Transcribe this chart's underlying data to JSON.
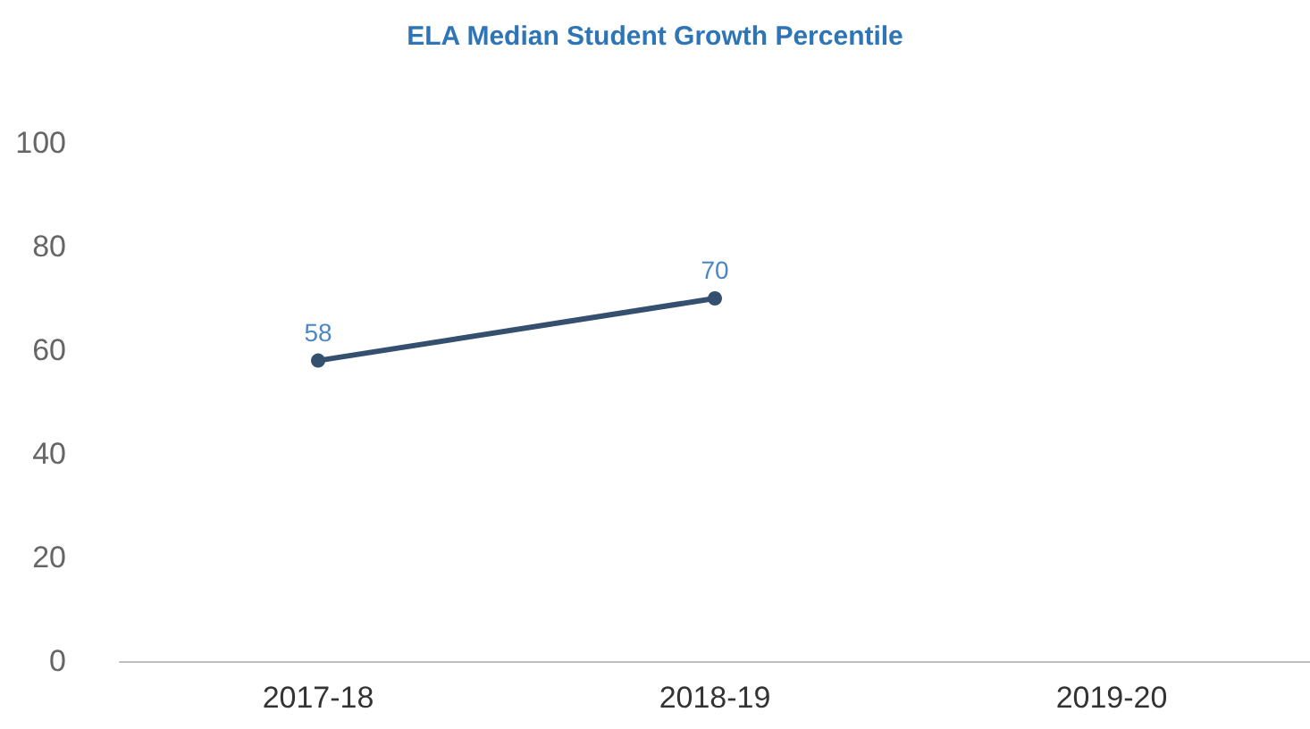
{
  "chart_data": {
    "type": "line",
    "title": "ELA Median Student Growth Percentile",
    "categories": [
      "2017-18",
      "2018-19",
      "2019-20"
    ],
    "series": [
      {
        "color": "#34506e",
        "values": [
          58,
          70,
          null
        ]
      }
    ],
    "ylim": [
      0,
      100
    ],
    "yticks": [
      0,
      20,
      40,
      60,
      80,
      100
    ],
    "grid": false,
    "marker": "circle",
    "line_style": "solid",
    "data_labels": true
  }
}
